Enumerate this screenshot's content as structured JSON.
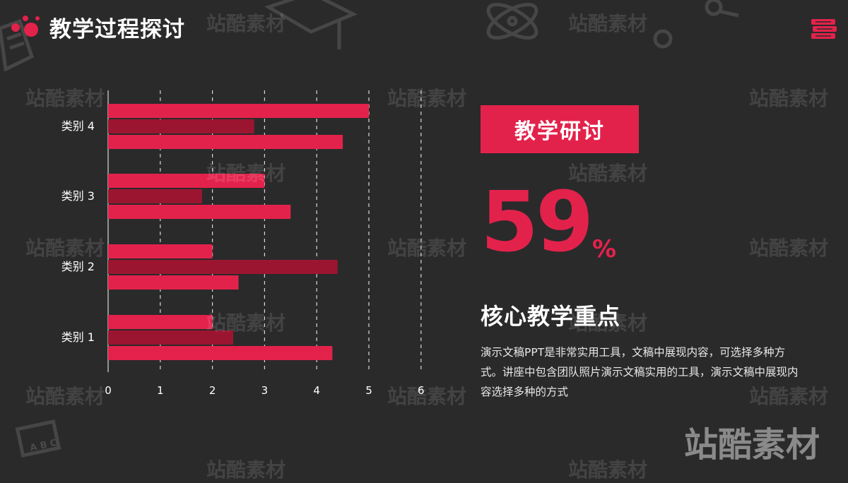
{
  "header": {
    "title": "教学过程探讨"
  },
  "icons": {
    "logo": "three-dots-logo-icon",
    "menu": "stacked-books-icon"
  },
  "colors": {
    "accent": "#e3224b",
    "accent_dark": "#9c1530",
    "background": "#2a2a2b"
  },
  "chart_data": {
    "type": "bar",
    "orientation": "horizontal",
    "categories": [
      "类别 1",
      "类别 2",
      "类别 3",
      "类别 4"
    ],
    "series": [
      {
        "values": [
          4.3,
          2.5,
          3.5,
          4.5
        ]
      },
      {
        "values": [
          2.4,
          4.4,
          1.8,
          2.8
        ]
      },
      {
        "values": [
          2.0,
          2.0,
          3.0,
          5.0
        ]
      }
    ],
    "xlim": [
      0,
      6
    ],
    "xticks": [
      "0",
      "1",
      "2",
      "3",
      "4",
      "5",
      "6"
    ],
    "grid": "vertical-dashed",
    "series_colors": [
      "#e3224b",
      "#9c1530",
      "#e3224b"
    ]
  },
  "panel": {
    "badge": "教学研讨",
    "percent_value": "59",
    "percent_sign": "%",
    "subtitle": "核心教学重点",
    "description": "演示文稿PPT是非常实用工具，文稿中展现内容，可选择多种方式。讲座中包含团队照片演示文稿实用的工具，演示文稿中展现内容选择多种的方式"
  },
  "watermark": {
    "text": "站酷素材"
  }
}
